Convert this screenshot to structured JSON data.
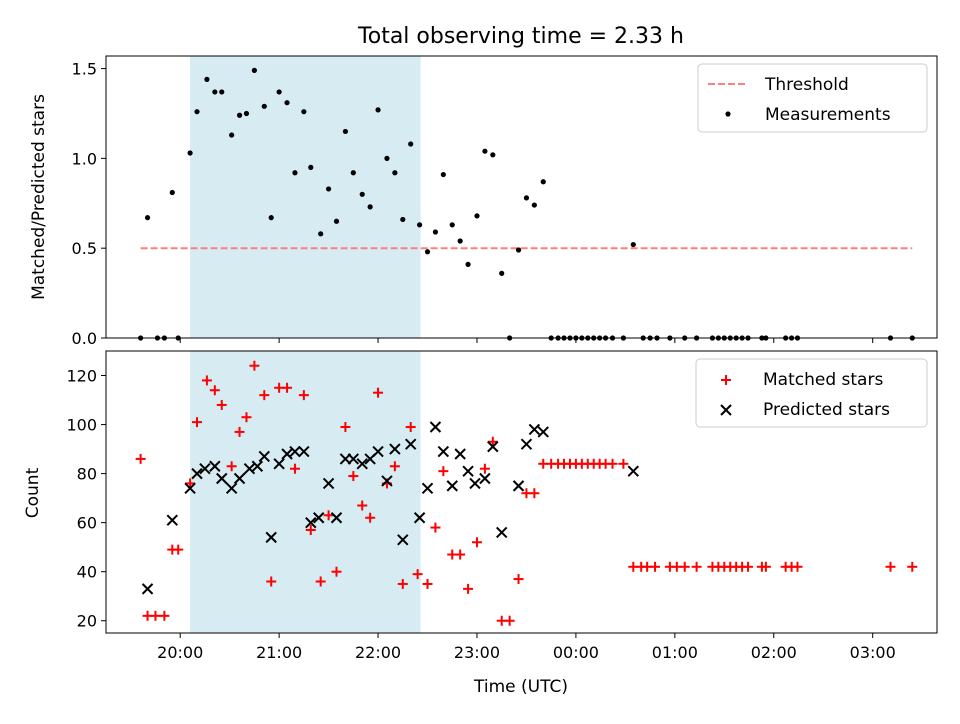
{
  "figure": {
    "title": "Total observing time = 2.33 h",
    "xlabel": "Time (UTC)",
    "x_ticks": [
      {
        "t": 20.0,
        "label": "20:00"
      },
      {
        "t": 21.0,
        "label": "21:00"
      },
      {
        "t": 22.0,
        "label": "22:00"
      },
      {
        "t": 23.0,
        "label": "23:00"
      },
      {
        "t": 24.0,
        "label": "00:00"
      },
      {
        "t": 25.0,
        "label": "01:00"
      },
      {
        "t": 26.0,
        "label": "02:00"
      },
      {
        "t": 27.0,
        "label": "03:00"
      }
    ],
    "x_range": [
      19.25,
      27.65
    ],
    "observing_window": [
      20.1,
      22.43
    ],
    "colors": {
      "threshold": "#ff7f7f",
      "measurements": "#000000",
      "matched": "#ff0000",
      "predicted": "#000000",
      "window": "#add8e6"
    }
  },
  "chart_data": [
    {
      "type": "scatter",
      "ylabel": "Matched/Predicted stars",
      "ylim": [
        0,
        1.57
      ],
      "y_ticks": [
        {
          "v": 0.0,
          "label": "0.0"
        },
        {
          "v": 0.5,
          "label": "0.5"
        },
        {
          "v": 1.0,
          "label": "1.0"
        },
        {
          "v": 1.5,
          "label": "1.5"
        }
      ],
      "legend": {
        "position": "top-right",
        "threshold_label": "Threshold",
        "measurements_label": "Measurements"
      },
      "threshold": {
        "value": 0.5,
        "x_range": [
          19.6,
          27.4
        ]
      },
      "measurements": [
        [
          19.6,
          0
        ],
        [
          19.67,
          0.67
        ],
        [
          19.77,
          0
        ],
        [
          19.84,
          0
        ],
        [
          19.92,
          0.81
        ],
        [
          19.98,
          0
        ],
        [
          20.1,
          1.03
        ],
        [
          20.17,
          1.26
        ],
        [
          20.27,
          1.44
        ],
        [
          20.35,
          1.37
        ],
        [
          20.42,
          1.37
        ],
        [
          20.52,
          1.13
        ],
        [
          20.6,
          1.24
        ],
        [
          20.67,
          1.25
        ],
        [
          20.75,
          1.49
        ],
        [
          20.85,
          1.29
        ],
        [
          20.92,
          0.67
        ],
        [
          21.0,
          1.37
        ],
        [
          21.08,
          1.31
        ],
        [
          21.16,
          0.92
        ],
        [
          21.25,
          1.26
        ],
        [
          21.32,
          0.95
        ],
        [
          21.42,
          0.58
        ],
        [
          21.5,
          0.83
        ],
        [
          21.58,
          0.65
        ],
        [
          21.67,
          1.15
        ],
        [
          21.75,
          0.92
        ],
        [
          21.84,
          0.8
        ],
        [
          21.92,
          0.73
        ],
        [
          22.0,
          1.27
        ],
        [
          22.09,
          1.0
        ],
        [
          22.17,
          0.92
        ],
        [
          22.25,
          0.66
        ],
        [
          22.33,
          1.08
        ],
        [
          22.42,
          0.63
        ],
        [
          22.5,
          0.48
        ],
        [
          22.58,
          0.59
        ],
        [
          22.66,
          0.91
        ],
        [
          22.75,
          0.63
        ],
        [
          22.83,
          0.54
        ],
        [
          22.91,
          0.41
        ],
        [
          23.0,
          0.68
        ],
        [
          23.08,
          1.04
        ],
        [
          23.16,
          1.02
        ],
        [
          23.25,
          0.36
        ],
        [
          23.33,
          0
        ],
        [
          23.42,
          0.49
        ],
        [
          23.5,
          0.78
        ],
        [
          23.58,
          0.74
        ],
        [
          23.67,
          0.87
        ],
        [
          23.75,
          0
        ],
        [
          23.82,
          0
        ],
        [
          23.88,
          0
        ],
        [
          23.94,
          0
        ],
        [
          24.0,
          0
        ],
        [
          24.06,
          0
        ],
        [
          24.12,
          0
        ],
        [
          24.18,
          0
        ],
        [
          24.24,
          0
        ],
        [
          24.3,
          0
        ],
        [
          24.37,
          0
        ],
        [
          24.48,
          0
        ],
        [
          24.58,
          0.52
        ],
        [
          24.68,
          0
        ],
        [
          24.75,
          0
        ],
        [
          24.82,
          0
        ],
        [
          24.95,
          0
        ],
        [
          25.1,
          0
        ],
        [
          25.22,
          0
        ],
        [
          25.38,
          0
        ],
        [
          25.44,
          0
        ],
        [
          25.5,
          0
        ],
        [
          25.56,
          0
        ],
        [
          25.62,
          0
        ],
        [
          25.68,
          0
        ],
        [
          25.74,
          0
        ],
        [
          25.88,
          0
        ],
        [
          25.92,
          0
        ],
        [
          26.12,
          0
        ],
        [
          26.18,
          0
        ],
        [
          26.24,
          0
        ],
        [
          27.18,
          0
        ],
        [
          27.4,
          0
        ]
      ]
    },
    {
      "type": "scatter",
      "ylabel": "Count",
      "ylim": [
        15,
        130
      ],
      "y_ticks": [
        {
          "v": 20,
          "label": "20"
        },
        {
          "v": 40,
          "label": "40"
        },
        {
          "v": 60,
          "label": "60"
        },
        {
          "v": 80,
          "label": "80"
        },
        {
          "v": 100,
          "label": "100"
        },
        {
          "v": 120,
          "label": "120"
        }
      ],
      "legend": {
        "position": "top-right",
        "matched_label": "Matched stars",
        "predicted_label": "Predicted stars"
      },
      "series": [
        {
          "name": "Matched stars",
          "marker": "plus",
          "points": [
            [
              19.6,
              86
            ],
            [
              19.67,
              22
            ],
            [
              19.75,
              22
            ],
            [
              19.84,
              22
            ],
            [
              19.92,
              49
            ],
            [
              19.98,
              49
            ],
            [
              20.1,
              76
            ],
            [
              20.17,
              101
            ],
            [
              20.27,
              118
            ],
            [
              20.35,
              114
            ],
            [
              20.42,
              108
            ],
            [
              20.52,
              83
            ],
            [
              20.6,
              97
            ],
            [
              20.67,
              103
            ],
            [
              20.75,
              124
            ],
            [
              20.85,
              112
            ],
            [
              20.92,
              36
            ],
            [
              21.0,
              115
            ],
            [
              21.08,
              115
            ],
            [
              21.16,
              82
            ],
            [
              21.25,
              112
            ],
            [
              21.32,
              57
            ],
            [
              21.42,
              36
            ],
            [
              21.5,
              63
            ],
            [
              21.58,
              40
            ],
            [
              21.67,
              99
            ],
            [
              21.75,
              79
            ],
            [
              21.84,
              67
            ],
            [
              21.92,
              62
            ],
            [
              22.0,
              113
            ],
            [
              22.09,
              76
            ],
            [
              22.17,
              83
            ],
            [
              22.25,
              35
            ],
            [
              22.33,
              99
            ],
            [
              22.4,
              39
            ],
            [
              22.5,
              35
            ],
            [
              22.58,
              58
            ],
            [
              22.66,
              81
            ],
            [
              22.75,
              47
            ],
            [
              22.83,
              47
            ],
            [
              22.91,
              33
            ],
            [
              23.0,
              52
            ],
            [
              23.08,
              82
            ],
            [
              23.16,
              93
            ],
            [
              23.25,
              20
            ],
            [
              23.33,
              20
            ],
            [
              23.42,
              37
            ],
            [
              23.5,
              72
            ],
            [
              23.58,
              72
            ],
            [
              23.67,
              84
            ],
            [
              23.75,
              84
            ],
            [
              23.82,
              84
            ],
            [
              23.88,
              84
            ],
            [
              23.94,
              84
            ],
            [
              24.0,
              84
            ],
            [
              24.06,
              84
            ],
            [
              24.12,
              84
            ],
            [
              24.18,
              84
            ],
            [
              24.24,
              84
            ],
            [
              24.3,
              84
            ],
            [
              24.37,
              84
            ],
            [
              24.48,
              84
            ],
            [
              24.58,
              42
            ],
            [
              24.66,
              42
            ],
            [
              24.72,
              42
            ],
            [
              24.8,
              42
            ],
            [
              24.95,
              42
            ],
            [
              25.02,
              42
            ],
            [
              25.1,
              42
            ],
            [
              25.22,
              42
            ],
            [
              25.38,
              42
            ],
            [
              25.44,
              42
            ],
            [
              25.5,
              42
            ],
            [
              25.56,
              42
            ],
            [
              25.62,
              42
            ],
            [
              25.68,
              42
            ],
            [
              25.74,
              42
            ],
            [
              25.88,
              42
            ],
            [
              25.92,
              42
            ],
            [
              26.12,
              42
            ],
            [
              26.18,
              42
            ],
            [
              26.24,
              42
            ],
            [
              27.18,
              42
            ],
            [
              27.4,
              42
            ]
          ]
        },
        {
          "name": "Predicted stars",
          "marker": "x",
          "points": [
            [
              19.67,
              33
            ],
            [
              19.92,
              61
            ],
            [
              20.1,
              74
            ],
            [
              20.17,
              80
            ],
            [
              20.25,
              82
            ],
            [
              20.35,
              83
            ],
            [
              20.42,
              78
            ],
            [
              20.52,
              74
            ],
            [
              20.6,
              78
            ],
            [
              20.7,
              82
            ],
            [
              20.78,
              83
            ],
            [
              20.85,
              87
            ],
            [
              20.92,
              54
            ],
            [
              21.0,
              84
            ],
            [
              21.08,
              88
            ],
            [
              21.16,
              89
            ],
            [
              21.25,
              89
            ],
            [
              21.32,
              60
            ],
            [
              21.4,
              62
            ],
            [
              21.5,
              76
            ],
            [
              21.58,
              62
            ],
            [
              21.67,
              86
            ],
            [
              21.75,
              86
            ],
            [
              21.84,
              84
            ],
            [
              21.92,
              86
            ],
            [
              22.0,
              89
            ],
            [
              22.09,
              77
            ],
            [
              22.17,
              90
            ],
            [
              22.25,
              53
            ],
            [
              22.33,
              92
            ],
            [
              22.42,
              62
            ],
            [
              22.5,
              74
            ],
            [
              22.58,
              99
            ],
            [
              22.66,
              89
            ],
            [
              22.75,
              75
            ],
            [
              22.83,
              88
            ],
            [
              22.91,
              81
            ],
            [
              22.98,
              76
            ],
            [
              23.08,
              78
            ],
            [
              23.16,
              91
            ],
            [
              23.25,
              56
            ],
            [
              23.42,
              75
            ],
            [
              23.5,
              92
            ],
            [
              23.58,
              98
            ],
            [
              23.67,
              97
            ],
            [
              24.58,
              81
            ]
          ]
        }
      ]
    }
  ]
}
